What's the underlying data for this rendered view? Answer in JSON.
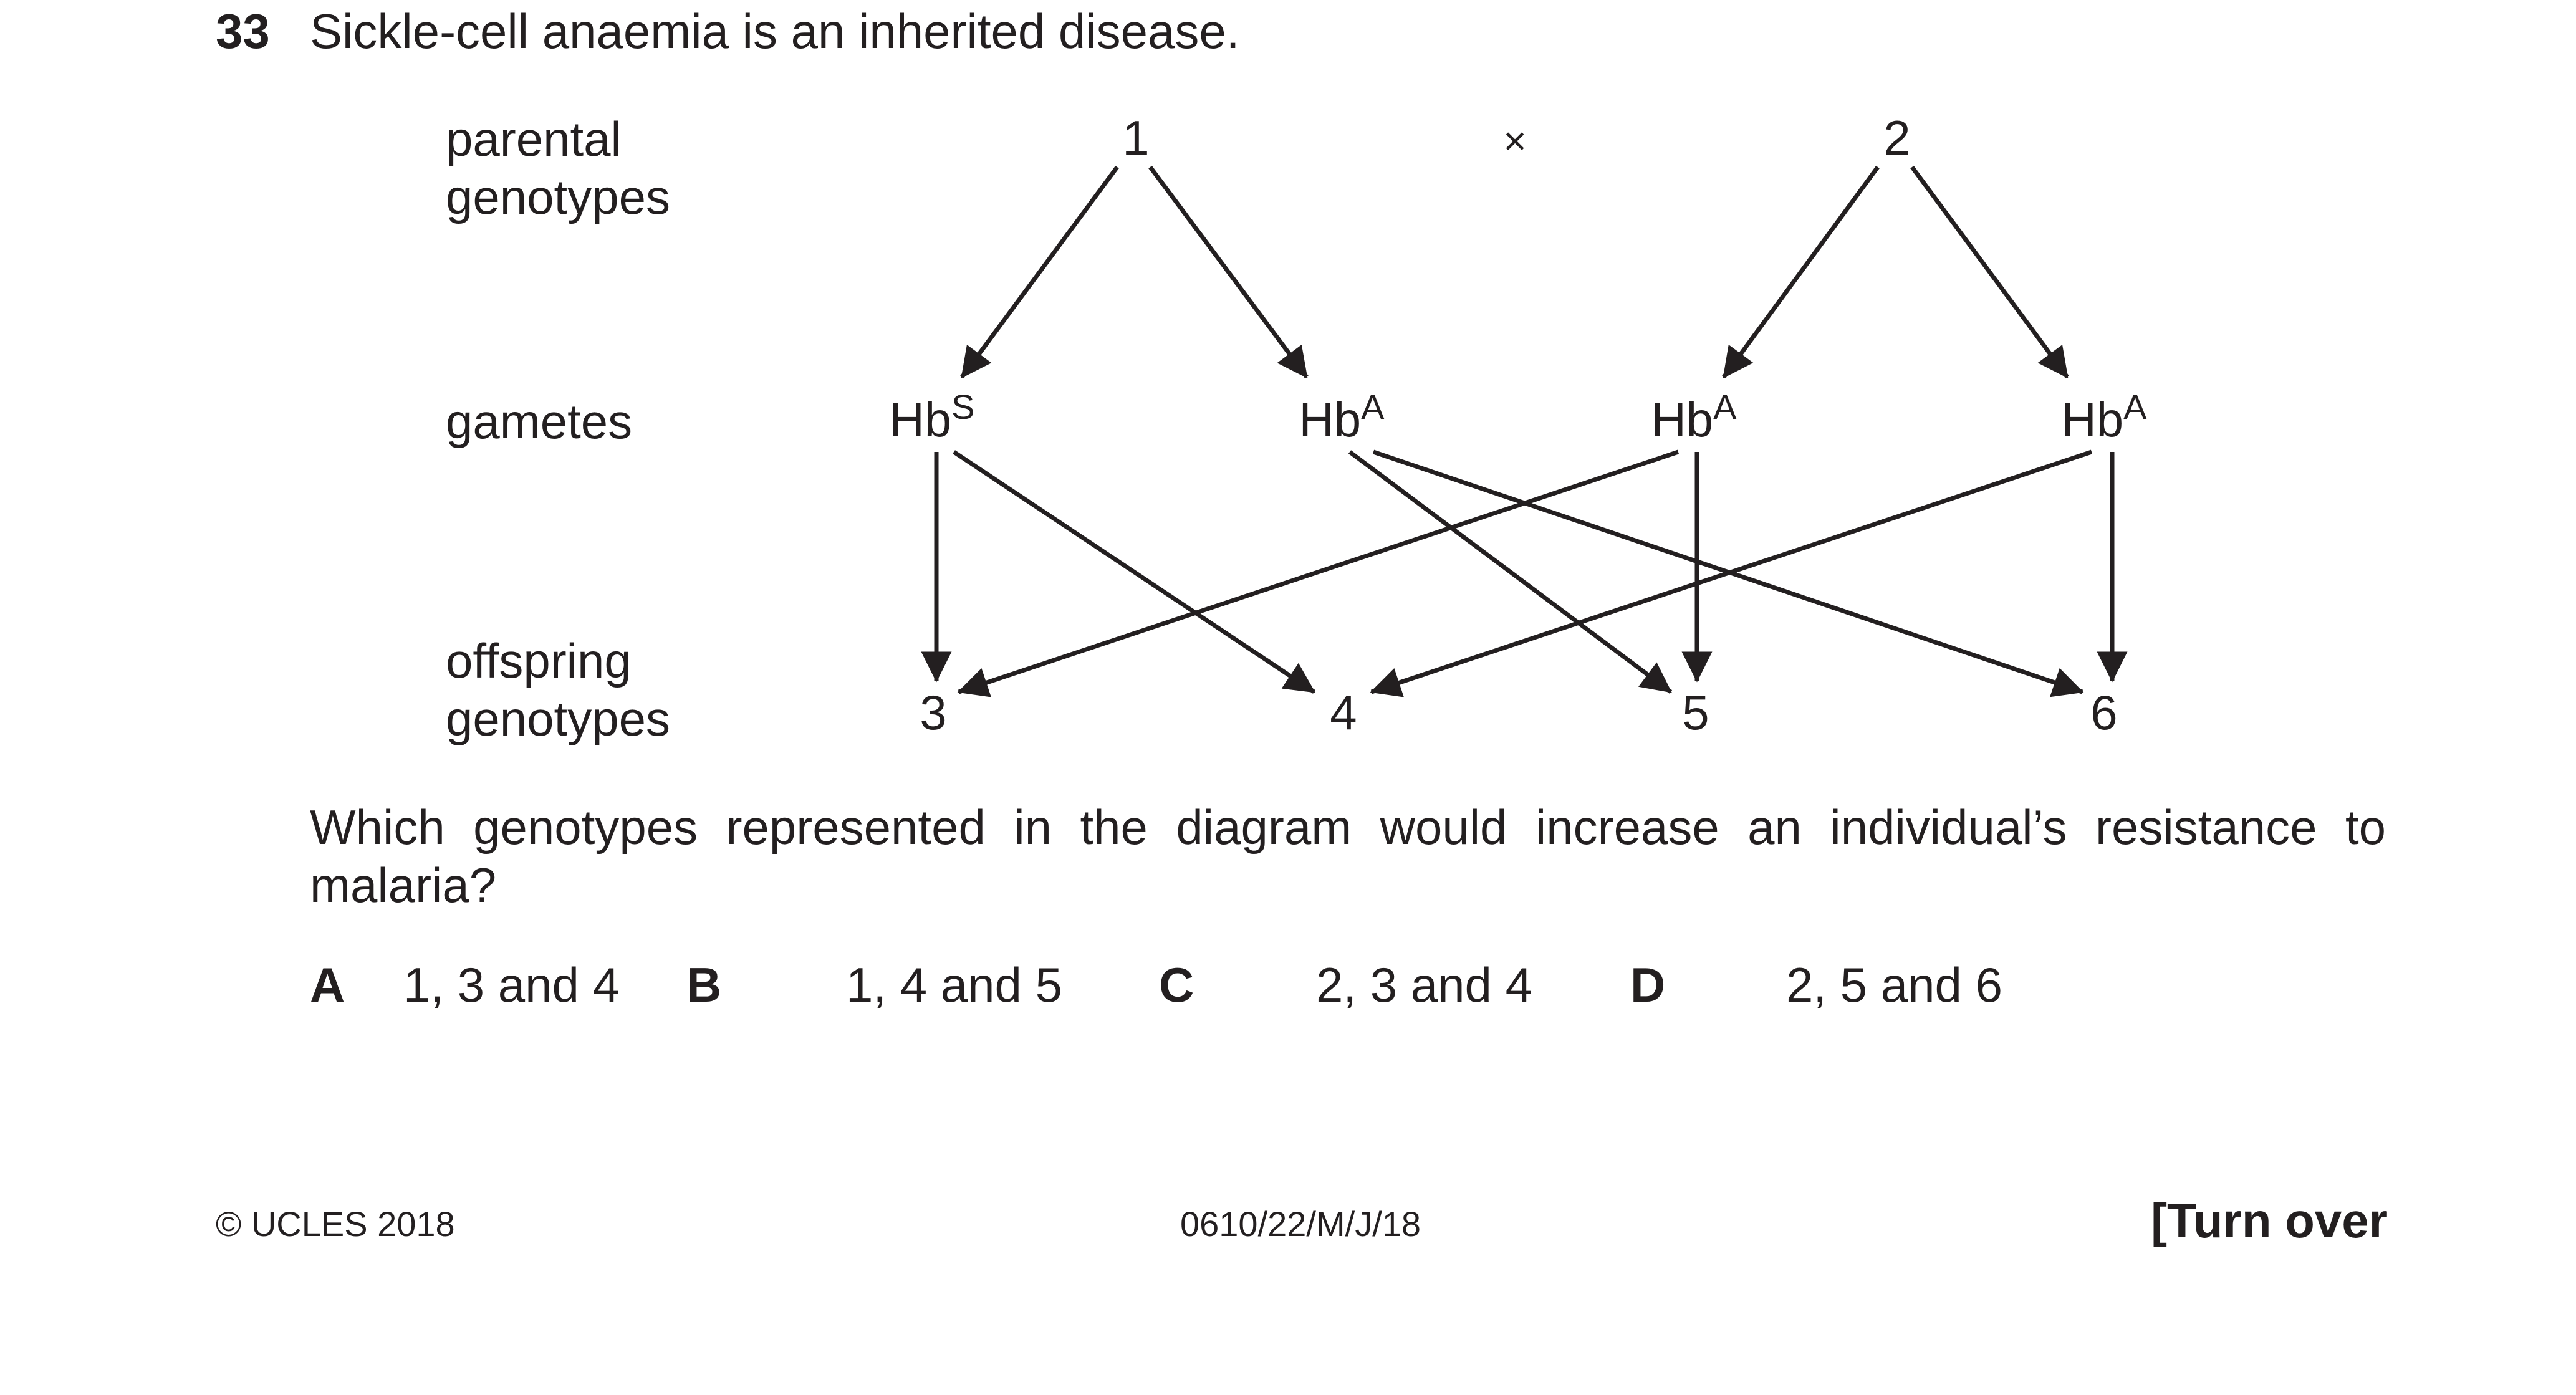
{
  "question": {
    "number": "33",
    "stem": "Sickle-cell anaemia is an inherited disease.",
    "prompt": "Which genotypes represented in the diagram would increase an individual’s resistance to malaria?"
  },
  "diagram": {
    "row_labels": {
      "parental": [
        "parental",
        "genotypes"
      ],
      "gametes": "gametes",
      "offspring": [
        "offspring",
        "genotypes"
      ]
    },
    "cross_symbol": "×",
    "parents": [
      "1",
      "2"
    ],
    "gametes": [
      {
        "base": "Hb",
        "sup": "S"
      },
      {
        "base": "Hb",
        "sup": "A"
      },
      {
        "base": "Hb",
        "sup": "A"
      },
      {
        "base": "Hb",
        "sup": "A"
      }
    ],
    "offspring": [
      "3",
      "4",
      "5",
      "6"
    ]
  },
  "options": [
    {
      "letter": "A",
      "text": "1, 3 and 4"
    },
    {
      "letter": "B",
      "text": "1, 4 and 5"
    },
    {
      "letter": "C",
      "text": "2, 3 and 4"
    },
    {
      "letter": "D",
      "text": "2, 5 and 6"
    }
  ],
  "footer": {
    "copyright": "© UCLES 2018",
    "code": "0610/22/M/J/18",
    "turn_over": "[Turn over"
  }
}
